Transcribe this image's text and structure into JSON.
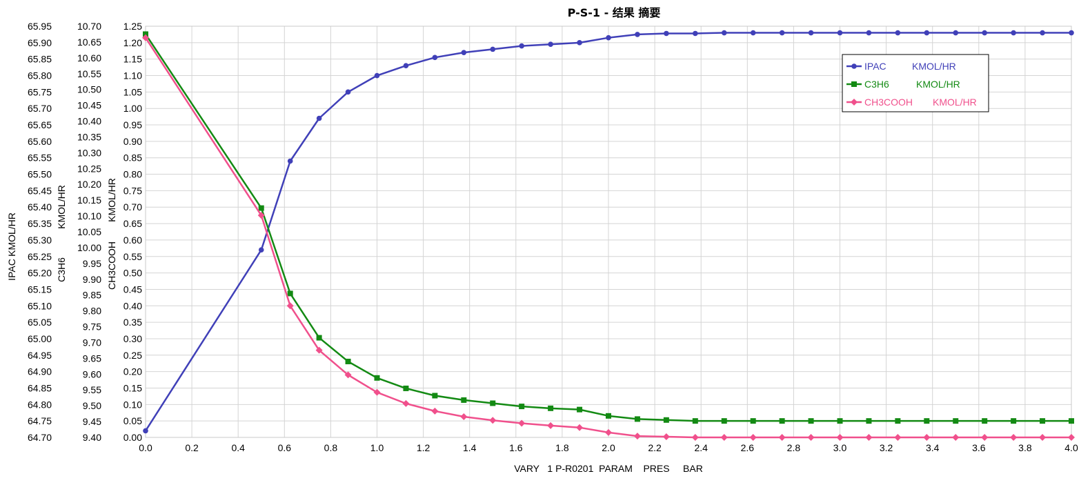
{
  "chart_data": {
    "type": "line",
    "title": "P-S-1 - 结果 摘要",
    "xlabel": "VARY   1 P-R0201  PARAM    PRES     BAR",
    "xlim": [
      0.0,
      4.0
    ],
    "x_ticks": [
      "0.0",
      "0.2",
      "0.4",
      "0.6",
      "0.8",
      "1.0",
      "1.2",
      "1.4",
      "1.6",
      "1.8",
      "2.0",
      "2.2",
      "2.4",
      "2.6",
      "2.8",
      "3.0",
      "3.2",
      "3.4",
      "3.6",
      "3.8",
      "4.0"
    ],
    "grid": true,
    "legend_position": "top-right",
    "x": [
      0.0,
      0.5,
      0.625,
      0.75,
      0.875,
      1.0,
      1.125,
      1.25,
      1.375,
      1.5,
      1.625,
      1.75,
      1.875,
      2.0,
      2.125,
      2.25,
      2.375,
      2.5,
      2.625,
      2.75,
      2.875,
      3.0,
      3.125,
      3.25,
      3.375,
      3.5,
      3.625,
      3.75,
      3.875,
      4.0
    ],
    "y_axes": [
      {
        "id": "ipac",
        "label_name": "IPAC",
        "label_unit": "KMOL/HR",
        "ylim": [
          64.7,
          65.95
        ],
        "ticks": [
          "64.70",
          "64.75",
          "64.80",
          "64.85",
          "64.90",
          "64.95",
          "65.00",
          "65.05",
          "65.10",
          "65.15",
          "65.20",
          "65.25",
          "65.30",
          "65.35",
          "65.40",
          "65.45",
          "65.50",
          "65.55",
          "65.60",
          "65.65",
          "65.70",
          "65.75",
          "65.80",
          "65.85",
          "65.90",
          "65.95"
        ]
      },
      {
        "id": "c3h6",
        "label_name": "C3H6",
        "label_unit": "KMOL/HR",
        "ylim": [
          9.4,
          10.7
        ],
        "ticks": [
          "9.40",
          "9.45",
          "9.50",
          "9.55",
          "9.60",
          "9.65",
          "9.70",
          "9.75",
          "9.80",
          "9.85",
          "9.90",
          "9.95",
          "10.00",
          "10.05",
          "10.10",
          "10.15",
          "10.20",
          "10.25",
          "10.30",
          "10.35",
          "10.40",
          "10.45",
          "10.50",
          "10.55",
          "10.60",
          "10.65",
          "10.70"
        ]
      },
      {
        "id": "ch3cooh",
        "label_name": "CH3COOH",
        "label_unit": "KMOL/HR",
        "ylim": [
          0.0,
          1.25
        ],
        "ticks": [
          "0.00",
          "0.05",
          "0.10",
          "0.15",
          "0.20",
          "0.25",
          "0.30",
          "0.35",
          "0.40",
          "0.45",
          "0.50",
          "0.55",
          "0.60",
          "0.65",
          "0.70",
          "0.75",
          "0.80",
          "0.85",
          "0.90",
          "0.95",
          "1.00",
          "1.05",
          "1.10",
          "1.15",
          "1.20",
          "1.25"
        ]
      }
    ],
    "series": [
      {
        "name": "IPAC",
        "unit": "KMOL/HR",
        "axis": "ipac",
        "marker": "circle",
        "color": "#4040b8",
        "values": [
          64.72,
          65.27,
          65.54,
          65.67,
          65.75,
          65.8,
          65.83,
          65.855,
          65.87,
          65.88,
          65.89,
          65.895,
          65.9,
          65.915,
          65.925,
          65.928,
          65.928,
          65.93,
          65.93,
          65.93,
          65.93,
          65.93,
          65.93,
          65.93,
          65.93,
          65.93,
          65.93,
          65.93,
          65.93,
          65.93
        ]
      },
      {
        "name": "C3H6",
        "unit": "KMOL/HR",
        "axis": "c3h6",
        "marker": "square",
        "color": "#138a13",
        "values": [
          10.675,
          10.125,
          9.855,
          9.715,
          9.64,
          9.588,
          9.555,
          9.532,
          9.518,
          9.508,
          9.498,
          9.492,
          9.488,
          9.468,
          9.458,
          9.455,
          9.452,
          9.452,
          9.452,
          9.452,
          9.452,
          9.452,
          9.452,
          9.452,
          9.452,
          9.452,
          9.452,
          9.452,
          9.452,
          9.452
        ]
      },
      {
        "name": "CH3COOH",
        "unit": "KMOL/HR",
        "axis": "ch3cooh",
        "marker": "diamond",
        "color": "#f0508c",
        "values": [
          1.215,
          0.675,
          0.4,
          0.265,
          0.19,
          0.137,
          0.103,
          0.08,
          0.063,
          0.052,
          0.043,
          0.036,
          0.03,
          0.015,
          0.004,
          0.002,
          0.0,
          0.0,
          0.0,
          0.0,
          0.0,
          0.0,
          0.0,
          0.0,
          0.0,
          0.0,
          0.0,
          0.0,
          0.0,
          0.0
        ]
      }
    ]
  }
}
